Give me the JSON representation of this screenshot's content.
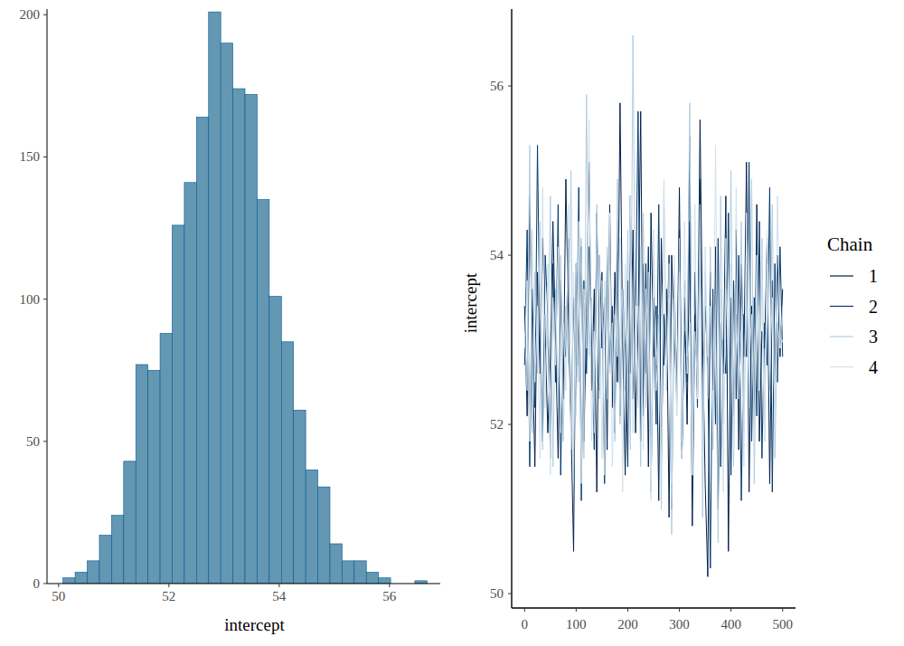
{
  "chart_data": [
    {
      "type": "histogram",
      "x_label": "intercept",
      "bins": [
        50.08,
        50.3,
        50.52,
        50.74,
        50.96,
        51.18,
        51.4,
        51.62,
        51.84,
        52.06,
        52.28,
        52.5,
        52.72,
        52.94,
        53.16,
        53.38,
        53.6,
        53.82,
        54.04,
        54.26,
        54.48,
        54.7,
        54.92,
        55.14,
        55.36,
        55.58,
        55.8,
        56.02,
        56.24,
        56.46,
        56.68
      ],
      "values": [
        2,
        4,
        8,
        17,
        24,
        43,
        77,
        75,
        88,
        126,
        141,
        164,
        201,
        190,
        174,
        172,
        135,
        101,
        85,
        61,
        40,
        34,
        14,
        8,
        8,
        4,
        2,
        0,
        0,
        1
      ],
      "color": "#6497b1",
      "xlim": [
        49.79,
        56.92
      ],
      "ylim": [
        0,
        202
      ],
      "xticks": [
        50,
        52,
        54,
        56
      ],
      "yticks": [
        0,
        50,
        100,
        150,
        200
      ]
    },
    {
      "type": "line",
      "y_label": "intercept",
      "legend_title": "Chain",
      "legend": "right",
      "x": [
        0,
        5,
        10,
        15,
        20,
        25,
        30,
        35,
        40,
        45,
        50,
        55,
        60,
        65,
        70,
        75,
        80,
        85,
        90,
        95,
        100,
        105,
        110,
        115,
        120,
        125,
        130,
        135,
        140,
        145,
        150,
        155,
        160,
        165,
        170,
        175,
        180,
        185,
        190,
        195,
        200,
        205,
        210,
        215,
        220,
        225,
        230,
        235,
        240,
        245,
        250,
        255,
        260,
        265,
        270,
        275,
        280,
        285,
        290,
        295,
        300,
        305,
        310,
        315,
        320,
        325,
        330,
        335,
        340,
        345,
        350,
        355,
        360,
        365,
        370,
        375,
        380,
        385,
        390,
        395,
        400,
        405,
        410,
        415,
        420,
        425,
        430,
        435,
        440,
        445,
        450,
        455,
        460,
        465,
        470,
        475,
        480,
        485,
        490,
        495,
        500
      ],
      "series": [
        {
          "name": "1",
          "color": "#011f4b",
          "values": [
            53.4,
            52.1,
            54.7,
            52.9,
            51.5,
            53.8,
            52.6,
            54.2,
            53.1,
            51.9,
            52.8,
            54.4,
            53.0,
            51.6,
            53.7,
            52.3,
            54.9,
            53.2,
            52.0,
            50.5,
            53.9,
            52.7,
            54.1,
            51.8,
            53.3,
            55.1,
            52.4,
            53.6,
            51.2,
            54.0,
            52.9,
            53.5,
            51.7,
            54.6,
            52.2,
            53.8,
            52.5,
            55.8,
            53.0,
            51.4,
            53.7,
            52.6,
            54.3,
            51.9,
            53.2,
            55.7,
            52.1,
            53.9,
            51.5,
            54.5,
            52.8,
            53.4,
            51.1,
            54.2,
            52.7,
            53.6,
            50.9,
            54.0,
            53.1,
            52.3,
            54.8,
            51.6,
            53.5,
            52.0,
            54.4,
            50.8,
            53.3,
            52.5,
            55.6,
            53.0,
            51.3,
            50.2,
            53.8,
            52.4,
            54.1,
            51.0,
            53.2,
            52.6,
            54.7,
            50.5,
            53.5,
            52.1,
            54.3,
            51.7,
            53.9,
            52.8,
            55.1,
            51.2,
            53.4,
            52.0,
            54.6,
            51.8,
            53.1,
            52.9,
            54.2,
            51.3,
            53.7,
            52.5,
            54.0,
            52.8,
            53.6
          ]
        },
        {
          "name": "2",
          "color": "#03396c",
          "values": [
            52.7,
            54.3,
            51.5,
            53.6,
            52.2,
            55.3,
            52.9,
            51.8,
            54.0,
            53.3,
            51.6,
            53.9,
            52.5,
            54.6,
            51.4,
            53.1,
            52.8,
            54.2,
            51.9,
            53.5,
            52.3,
            54.8,
            51.1,
            53.7,
            52.6,
            54.1,
            53.0,
            51.7,
            54.5,
            52.4,
            53.8,
            51.3,
            54.0,
            52.7,
            53.4,
            51.9,
            54.4,
            52.1,
            53.6,
            52.9,
            51.5,
            54.7,
            52.3,
            53.2,
            55.7,
            51.8,
            53.9,
            52.6,
            54.1,
            51.2,
            53.5,
            52.0,
            54.6,
            51.6,
            53.3,
            52.8,
            54.0,
            51.0,
            53.7,
            52.4,
            54.3,
            51.7,
            53.1,
            52.5,
            55.4,
            51.3,
            53.8,
            52.2,
            54.9,
            51.9,
            53.4,
            52.7,
            50.3,
            53.6,
            52.0,
            54.2,
            51.5,
            53.0,
            52.6,
            54.5,
            51.4,
            53.7,
            52.3,
            54.0,
            51.1,
            53.3,
            52.8,
            55.1,
            51.8,
            53.5,
            52.1,
            54.4,
            51.6,
            53.2,
            52.7,
            54.8,
            51.2,
            53.9,
            52.5,
            54.1,
            52.8
          ]
        },
        {
          "name": "3",
          "color": "#b3cde0",
          "values": [
            53.1,
            52.4,
            55.3,
            51.9,
            53.8,
            52.6,
            54.4,
            51.7,
            53.3,
            52.9,
            54.7,
            51.5,
            53.6,
            52.2,
            54.0,
            51.8,
            53.4,
            52.7,
            55.0,
            51.3,
            53.9,
            52.5,
            54.2,
            51.6,
            55.9,
            52.8,
            53.5,
            51.9,
            54.6,
            52.3,
            53.7,
            51.4,
            54.1,
            52.6,
            53.2,
            51.8,
            54.9,
            52.0,
            53.6,
            52.4,
            54.3,
            51.7,
            56.6,
            52.9,
            53.4,
            51.5,
            54.5,
            52.2,
            53.8,
            51.2,
            54.0,
            52.7,
            53.3,
            51.0,
            54.8,
            52.4,
            53.9,
            50.7,
            53.5,
            52.1,
            54.2,
            51.6,
            53.7,
            52.8,
            55.8,
            51.4,
            53.1,
            52.5,
            54.6,
            50.9,
            53.8,
            52.3,
            54.1,
            51.7,
            53.4,
            50.6,
            54.7,
            52.0,
            53.6,
            52.8,
            55.0,
            51.5,
            53.3,
            52.6,
            54.4,
            51.9,
            53.7,
            52.2,
            54.9,
            51.3,
            53.5,
            52.7,
            54.2,
            51.8,
            53.9,
            52.4,
            54.6,
            51.6,
            53.2,
            52.9,
            53.4
          ]
        },
        {
          "name": "4",
          "color": "#d1e1ec",
          "values": [
            52.9,
            53.7,
            51.8,
            54.3,
            52.5,
            53.4,
            51.6,
            54.8,
            52.2,
            53.9,
            51.4,
            53.5,
            52.7,
            54.1,
            51.9,
            53.2,
            52.4,
            54.6,
            51.7,
            53.8,
            52.1,
            54.4,
            51.3,
            53.6,
            52.9,
            55.6,
            51.8,
            53.1,
            52.5,
            54.0,
            51.6,
            53.7,
            52.3,
            54.5,
            51.5,
            53.3,
            52.8,
            54.2,
            51.2,
            53.9,
            52.6,
            54.7,
            51.9,
            53.4,
            52.2,
            54.1,
            51.7,
            53.6,
            52.9,
            51.1,
            54.3,
            52.4,
            53.0,
            51.5,
            54.9,
            52.7,
            53.5,
            51.3,
            54.0,
            52.1,
            53.8,
            51.8,
            54.4,
            52.6,
            53.2,
            51.4,
            54.6,
            52.3,
            53.7,
            51.6,
            54.1,
            52.8,
            53.4,
            51.9,
            55.3,
            52.0,
            53.6,
            51.2,
            54.2,
            52.5,
            53.9,
            51.7,
            54.8,
            52.3,
            53.1,
            51.5,
            54.5,
            52.7,
            53.3,
            51.9,
            54.0,
            52.4,
            53.7,
            51.8,
            54.3,
            52.6,
            53.5,
            52.1,
            54.7,
            52.9,
            53.0
          ]
        }
      ],
      "xlim": [
        -25,
        525
      ],
      "ylim": [
        49.83,
        56.91
      ],
      "xticks": [
        0,
        100,
        200,
        300,
        400,
        500
      ],
      "yticks": [
        50,
        52,
        54,
        56
      ]
    }
  ]
}
